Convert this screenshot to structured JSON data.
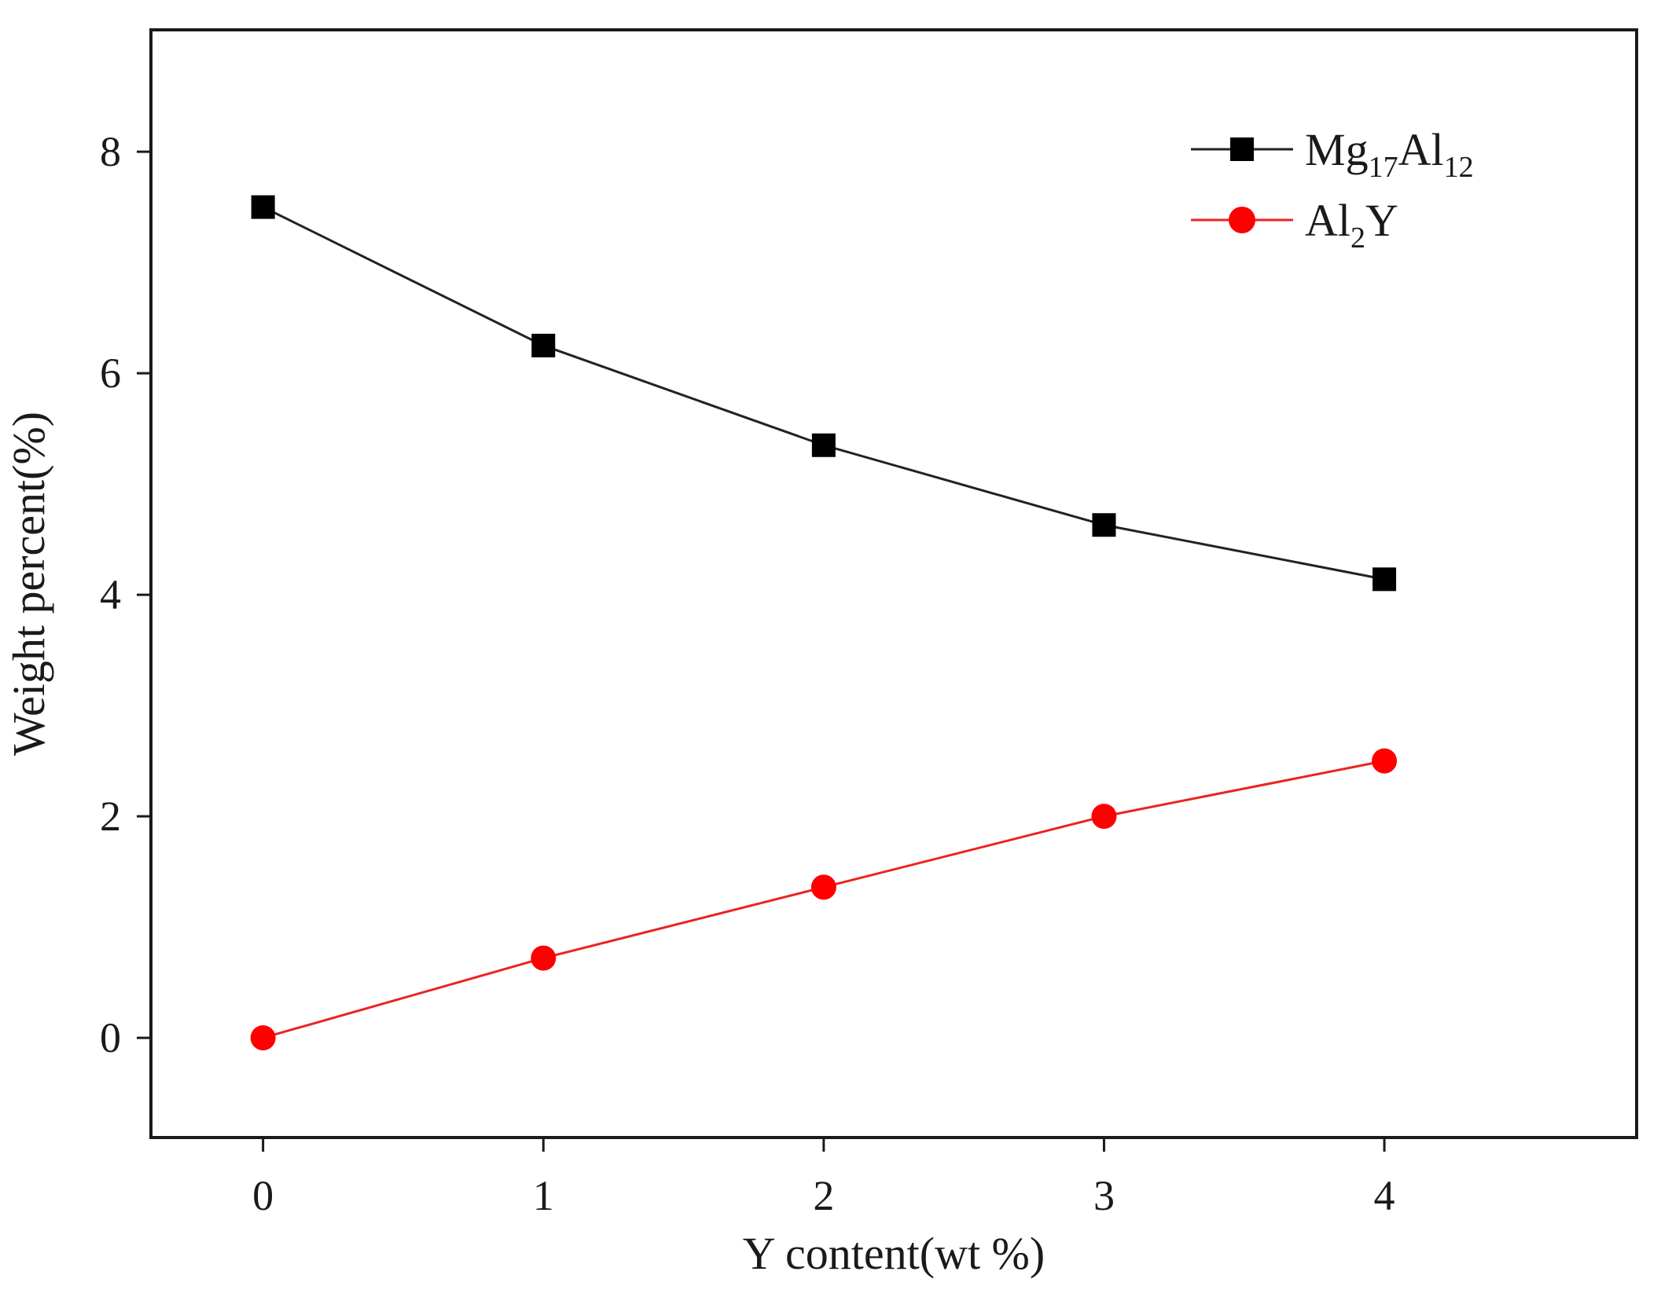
{
  "chart_data": {
    "type": "line",
    "title": "",
    "xlabel": "Y content(wt %)",
    "ylabel": "Weight percent(%)",
    "x": [
      0,
      1,
      2,
      3,
      4
    ],
    "xlim": [
      -0.4,
      4.9
    ],
    "ylim": [
      -0.9,
      9.1
    ],
    "xticks": [
      "0",
      "1",
      "2",
      "3",
      "4"
    ],
    "yticks": [
      "0",
      "2",
      "4",
      "6",
      "8"
    ],
    "grid": false,
    "legend_position": "top-right",
    "series": [
      {
        "name": "Mg17Al12",
        "label_parts": {
          "base1": "Mg",
          "sub1": "17",
          "base2": "Al",
          "sub2": "12"
        },
        "marker": "square",
        "color": "#000000",
        "line_color": "#222222",
        "values": [
          7.5,
          6.25,
          5.35,
          4.63,
          4.14
        ]
      },
      {
        "name": "Al2Y",
        "label_parts": {
          "base1": "Al",
          "sub1": "2",
          "base2": "Y",
          "sub2": ""
        },
        "marker": "circle",
        "color": "#ff0000",
        "line_color": "#ee2222",
        "values": [
          0.0,
          0.72,
          1.36,
          2.0,
          2.5
        ]
      }
    ]
  }
}
